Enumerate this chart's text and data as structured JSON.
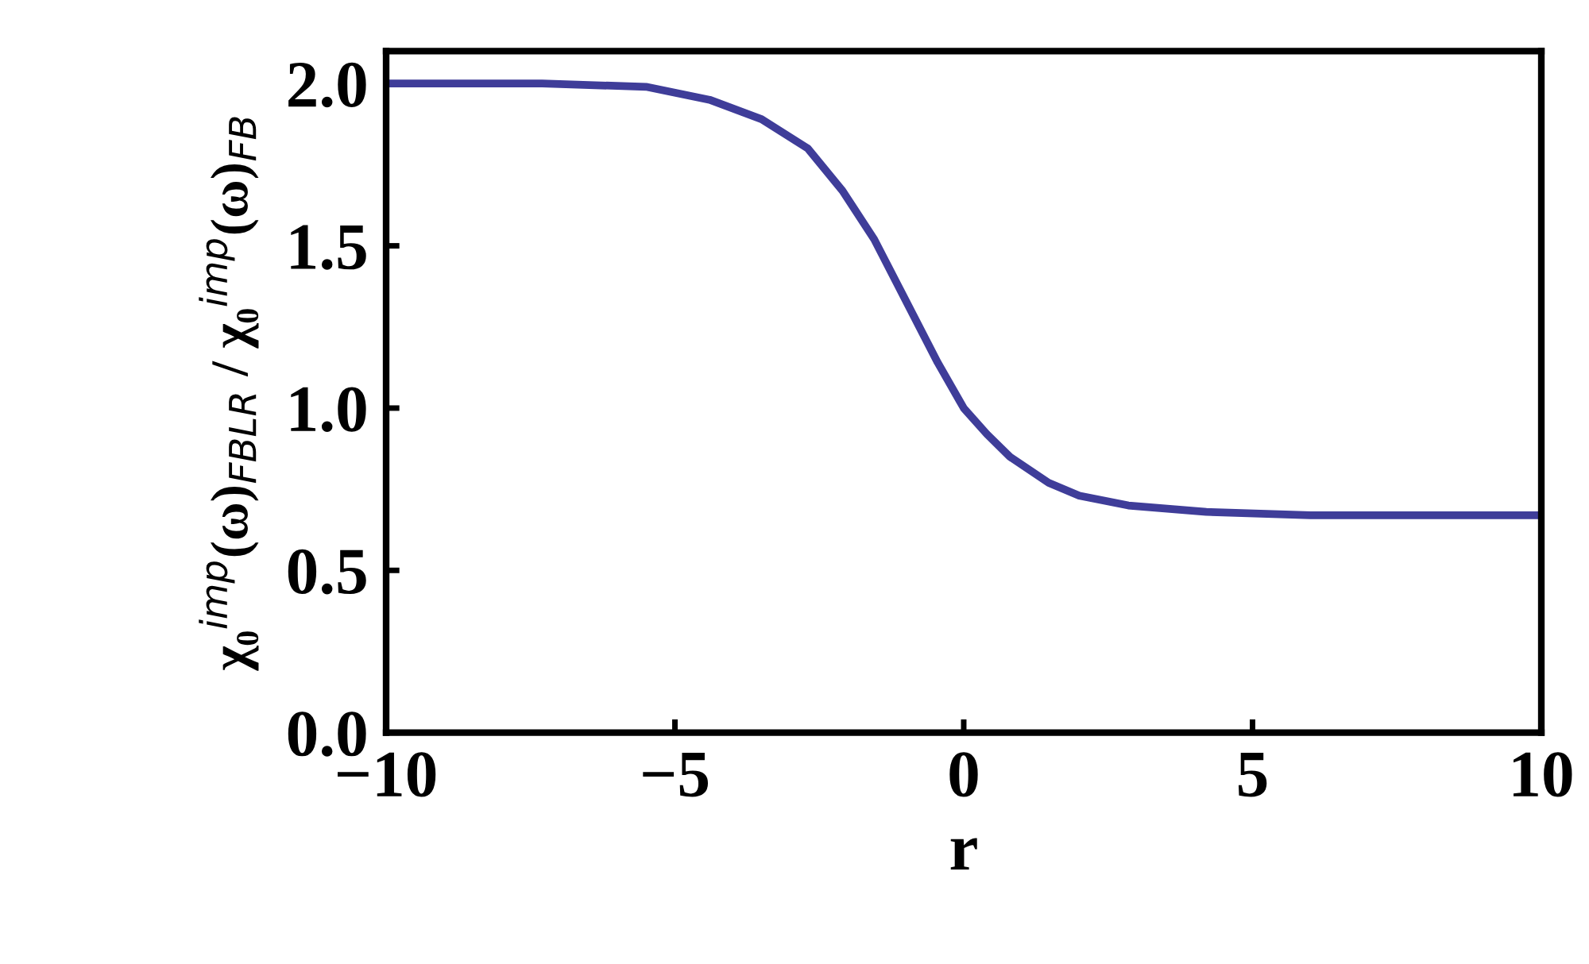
{
  "chart_data": {
    "type": "line",
    "xlabel": "r",
    "ylabel": "χ₀$^{imp}$(ω)$_{FBLR}$ / χ₀$^{imp}$(ω)$_{FB}$",
    "xlim": [
      -10,
      10
    ],
    "xticks": [
      {
        "value": -10,
        "label": "−10"
      },
      {
        "value": -5,
        "label": "−5"
      },
      0,
      5,
      10
    ],
    "ylim": [
      0,
      2.1
    ],
    "yticks": [
      {
        "value": 0,
        "label": "0.0"
      },
      {
        "value": 0.5,
        "label": "0.5"
      },
      {
        "value": 1,
        "label": "1.0"
      },
      {
        "value": 1.5,
        "label": "1.5"
      },
      {
        "value": 2,
        "label": "2.0"
      }
    ],
    "grid": false,
    "line_style": "solid",
    "marker": "none",
    "series": [
      {
        "color": "#3f3d99",
        "x": [
          -10,
          -7.3,
          -5.5,
          -4.4,
          -3.5,
          -2.7,
          -2.1,
          -1.55,
          -1.0,
          -0.45,
          0.0,
          0.4,
          0.8,
          1.47,
          2.0,
          2.85,
          4.2,
          6.0,
          8.0,
          10
        ],
        "values": [
          2.0,
          2.0,
          1.99,
          1.95,
          1.89,
          1.8,
          1.67,
          1.52,
          1.33,
          1.14,
          1.0,
          0.92,
          0.85,
          0.77,
          0.73,
          0.7,
          0.68,
          0.67,
          0.67,
          0.67
        ]
      }
    ]
  }
}
